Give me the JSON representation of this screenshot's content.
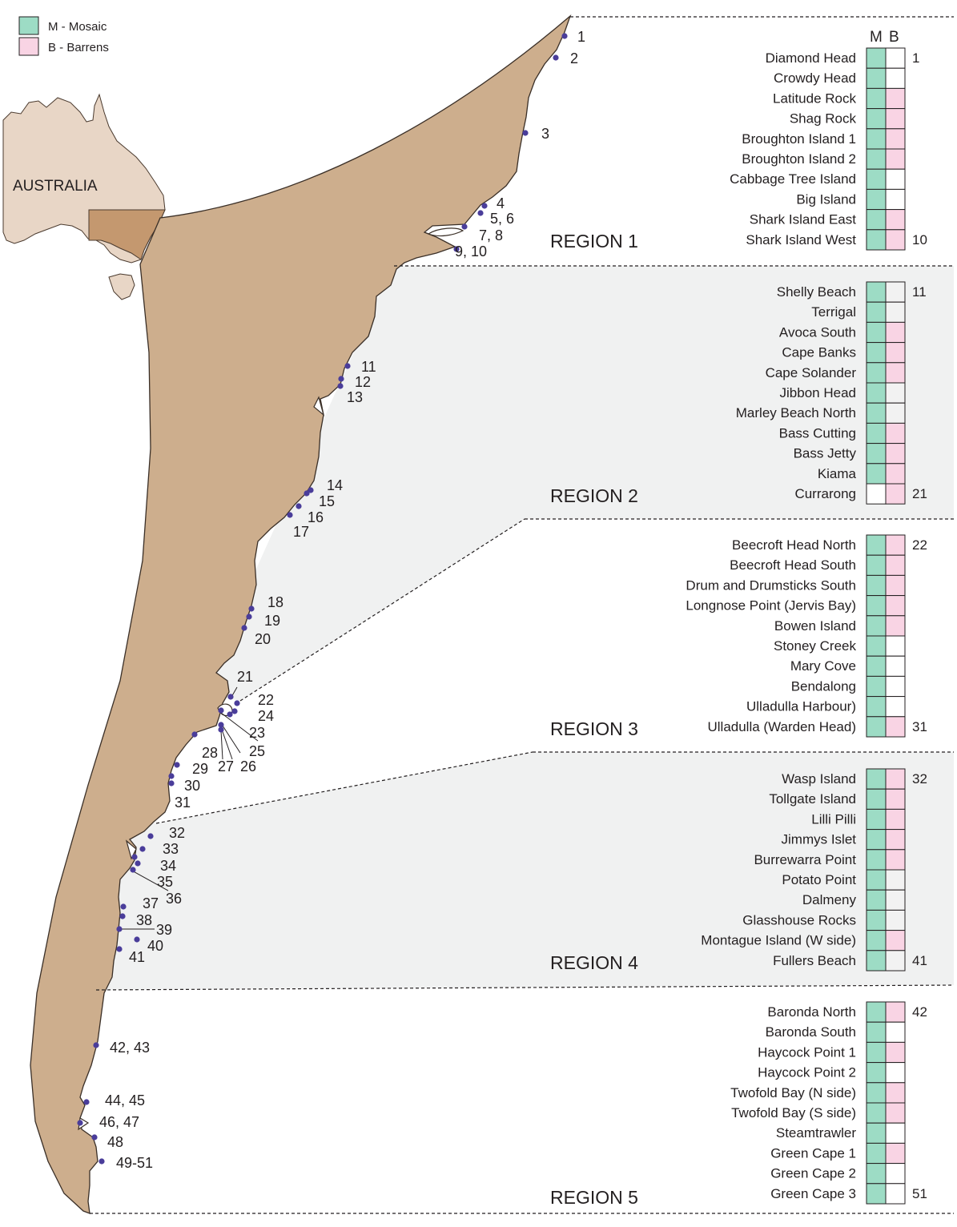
{
  "legend": [
    {
      "label": "M - Mosaic",
      "color": "#9ddcc5"
    },
    {
      "label": "B - Barrens",
      "color": "#f9d4e4"
    }
  ],
  "colors": {
    "land": "#cdae8d",
    "land_stroke": "#3a2f27",
    "australia": "#e8d6c6",
    "nsw_inset": "#c4986f",
    "region_shade": "#f0f1f1",
    "site_dot": "#4a3d9a",
    "mosaic": "#9ddcc5",
    "barrens": "#f9d4e4",
    "empty_light": "#f2f2f2"
  },
  "inset_label": "AUSTRALIA",
  "table_header": {
    "m": "M",
    "b": "B"
  },
  "regions": [
    {
      "label": "REGION 1",
      "first": "1",
      "last": "10",
      "shaded": false,
      "sites": [
        {
          "name": "Diamond Head",
          "m": true,
          "b": false
        },
        {
          "name": "Crowdy Head",
          "m": true,
          "b": false
        },
        {
          "name": "Latitude Rock",
          "m": true,
          "b": true
        },
        {
          "name": "Shag Rock",
          "m": true,
          "b": true
        },
        {
          "name": "Broughton Island 1",
          "m": true,
          "b": true
        },
        {
          "name": "Broughton Island 2",
          "m": true,
          "b": true
        },
        {
          "name": "Cabbage Tree Island",
          "m": true,
          "b": false
        },
        {
          "name": "Big Island",
          "m": true,
          "b": false
        },
        {
          "name": "Shark Island East",
          "m": true,
          "b": true
        },
        {
          "name": "Shark Island West",
          "m": true,
          "b": true
        }
      ]
    },
    {
      "label": "REGION 2",
      "first": "11",
      "last": "21",
      "shaded": true,
      "sites": [
        {
          "name": "Shelly Beach",
          "m": true,
          "b": false
        },
        {
          "name": "Terrigal",
          "m": true,
          "b": false
        },
        {
          "name": "Avoca South",
          "m": true,
          "b": true
        },
        {
          "name": "Cape Banks",
          "m": true,
          "b": true
        },
        {
          "name": "Cape Solander",
          "m": true,
          "b": true
        },
        {
          "name": "Jibbon Head",
          "m": true,
          "b": false
        },
        {
          "name": "Marley Beach North",
          "m": true,
          "b": false
        },
        {
          "name": "Bass Cutting",
          "m": true,
          "b": true
        },
        {
          "name": "Bass Jetty",
          "m": true,
          "b": true
        },
        {
          "name": "Kiama",
          "m": true,
          "b": true
        },
        {
          "name": "Currarong",
          "m": false,
          "b": true
        }
      ]
    },
    {
      "label": "REGION 3",
      "first": "22",
      "last": "31",
      "shaded": false,
      "sites": [
        {
          "name": "Beecroft Head North",
          "m": true,
          "b": true
        },
        {
          "name": "Beecroft Head South",
          "m": true,
          "b": true
        },
        {
          "name": "Drum and Drumsticks South",
          "m": true,
          "b": true
        },
        {
          "name": "Longnose Point (Jervis Bay)",
          "m": true,
          "b": true
        },
        {
          "name": "Bowen Island",
          "m": true,
          "b": true
        },
        {
          "name": "Stoney Creek",
          "m": true,
          "b": false
        },
        {
          "name": "Mary Cove",
          "m": true,
          "b": false
        },
        {
          "name": "Bendalong",
          "m": true,
          "b": false
        },
        {
          "name": "Ulladulla Harbour)",
          "m": true,
          "b": false
        },
        {
          "name": "Ulladulla (Warden Head)",
          "m": true,
          "b": true
        }
      ]
    },
    {
      "label": "REGION 4",
      "first": "32",
      "last": "41",
      "shaded": true,
      "sites": [
        {
          "name": "Wasp Island",
          "m": true,
          "b": true
        },
        {
          "name": "Tollgate Island",
          "m": true,
          "b": true
        },
        {
          "name": "Lilli Pilli",
          "m": true,
          "b": true
        },
        {
          "name": "Jimmys Islet",
          "m": true,
          "b": true
        },
        {
          "name": "Burrewarra Point",
          "m": true,
          "b": true
        },
        {
          "name": "Potato Point",
          "m": true,
          "b": false
        },
        {
          "name": "Dalmeny",
          "m": true,
          "b": false
        },
        {
          "name": "Glasshouse Rocks",
          "m": true,
          "b": false
        },
        {
          "name": "Montague Island (W side)",
          "m": true,
          "b": true
        },
        {
          "name": "Fullers Beach",
          "m": true,
          "b": false
        }
      ]
    },
    {
      "label": "REGION 5",
      "first": "42",
      "last": "51",
      "shaded": false,
      "sites": [
        {
          "name": "Baronda North",
          "m": true,
          "b": true
        },
        {
          "name": "Baronda South",
          "m": true,
          "b": false
        },
        {
          "name": "Haycock Point 1",
          "m": true,
          "b": true
        },
        {
          "name": "Haycock Point 2",
          "m": true,
          "b": false
        },
        {
          "name": "Twofold Bay (N side)",
          "m": true,
          "b": true
        },
        {
          "name": "Twofold Bay (S side)",
          "m": true,
          "b": true
        },
        {
          "name": "Steamtrawler",
          "m": true,
          "b": false
        },
        {
          "name": "Green Cape 1",
          "m": true,
          "b": true
        },
        {
          "name": "Green Cape 2",
          "m": true,
          "b": false
        },
        {
          "name": "Green Cape 3",
          "m": true,
          "b": false
        }
      ]
    }
  ],
  "map_labels": [
    "1",
    "2",
    "3",
    "4",
    "5, 6",
    "7, 8",
    "9, 10",
    "11",
    "12",
    "13",
    "14",
    "15",
    "16",
    "17",
    "18",
    "19",
    "20",
    "21",
    "22",
    "24",
    "23",
    "25",
    "28",
    "27",
    "26",
    "29",
    "30",
    "31",
    "32",
    "33",
    "34",
    "35",
    "36",
    "37",
    "38",
    "39",
    "40",
    "41",
    "42, 43",
    "44, 45",
    "46, 47",
    "48",
    "49-51"
  ]
}
